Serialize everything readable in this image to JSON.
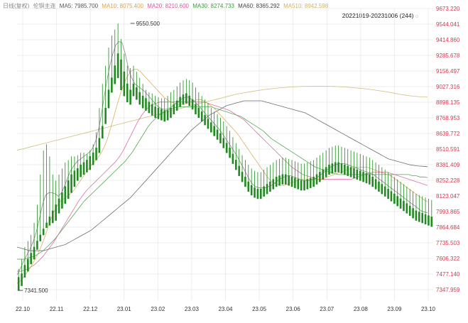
{
  "legend": {
    "name": "日线(复权)",
    "contract": "伦铜主连",
    "items": [
      {
        "label": "MA5: 7985.700",
        "color": "#555555"
      },
      {
        "label": "MA10: 8075.400",
        "color": "#d9a24a"
      },
      {
        "label": "MA20: 8210.600",
        "color": "#d9559a"
      },
      {
        "label": "MA30: 8274.733",
        "color": "#3a9a3a"
      },
      {
        "label": "MA60: 8365.292",
        "color": "#444444"
      },
      {
        "label": "MA510: 8942.598",
        "color": "#c8b46a"
      }
    ]
  },
  "range_label": "20221019-20231006 (244)",
  "colors": {
    "up": "#e0334a",
    "down": "#1f8a1f",
    "axis_text": "#e0334a",
    "grid": "#ececec"
  },
  "chart_data": {
    "type": "line",
    "y_ticks": [
      "9673.220",
      "9544.041",
      "9414.860",
      "9285.678",
      "9156.497",
      "9027.316",
      "8898.135",
      "8768.953",
      "8639.772",
      "8510.591",
      "8381.409",
      "8252.228",
      "8123.047",
      "7993.865",
      "7864.684",
      "7735.503",
      "7606.322",
      "7477.140",
      "7347.959"
    ],
    "ylim": [
      7347.959,
      9673.22
    ],
    "x_ticks": [
      "22.10",
      "22.11",
      "22.12",
      "23.01",
      "23.02",
      "23.03",
      "23.04",
      "23.05",
      "23.06",
      "23.07",
      "23.08",
      "23.09",
      "23.10"
    ],
    "annotations": [
      {
        "label": "9550.500",
        "x": 36,
        "y": 9550.5
      },
      {
        "label": "7341.500",
        "x": 0,
        "y": 7341.5
      }
    ],
    "candles": [
      [
        7450,
        7520,
        7380,
        7340
      ],
      [
        7480,
        7600,
        7420,
        7380
      ],
      [
        7550,
        7700,
        7480,
        7450
      ],
      [
        7600,
        7750,
        7560,
        7500
      ],
      [
        7650,
        7800,
        7620,
        7560
      ],
      [
        7700,
        7900,
        7680,
        7600
      ],
      [
        7750,
        8050,
        7720,
        7680
      ],
      [
        7800,
        8300,
        7790,
        7750
      ],
      [
        7850,
        8500,
        7840,
        7800
      ],
      [
        7900,
        8550,
        7880,
        7860
      ],
      [
        7950,
        8450,
        7900,
        7880
      ],
      [
        8000,
        8300,
        7940,
        7900
      ],
      [
        8050,
        8250,
        7980,
        7920
      ],
      [
        8100,
        8300,
        8000,
        7980
      ],
      [
        8150,
        8350,
        8060,
        8020
      ],
      [
        8200,
        8400,
        8100,
        8060
      ],
      [
        8250,
        8420,
        8180,
        8100
      ],
      [
        8300,
        8450,
        8240,
        8150
      ],
      [
        8330,
        8450,
        8300,
        8200
      ],
      [
        8350,
        8460,
        8330,
        8250
      ],
      [
        8380,
        8480,
        8350,
        8280
      ],
      [
        8400,
        8480,
        8370,
        8300
      ],
      [
        8420,
        8470,
        8400,
        8320
      ],
      [
        8450,
        8500,
        8420,
        8340
      ],
      [
        8480,
        8550,
        8450,
        8380
      ],
      [
        8520,
        8650,
        8500,
        8420
      ],
      [
        8600,
        8850,
        8580,
        8480
      ],
      [
        8700,
        9050,
        8680,
        8600
      ],
      [
        8850,
        9200,
        8820,
        8720
      ],
      [
        9000,
        9350,
        8950,
        8850
      ],
      [
        9100,
        9450,
        9050,
        8980
      ],
      [
        9200,
        9500,
        9150,
        9050
      ],
      [
        9300,
        9550.5,
        9250,
        9100
      ],
      [
        9250,
        9420,
        9150,
        9000
      ],
      [
        9150,
        9300,
        9050,
        8950
      ],
      [
        9050,
        9200,
        8980,
        8900
      ],
      [
        9000,
        9180,
        8950,
        8880
      ],
      [
        9050,
        9200,
        9000,
        8950
      ],
      [
        9020,
        9150,
        8980,
        8920
      ],
      [
        8980,
        9100,
        8930,
        8880
      ],
      [
        8950,
        9050,
        8900,
        8850
      ],
      [
        8930,
        9000,
        8880,
        8830
      ],
      [
        8900,
        8980,
        8860,
        8810
      ],
      [
        8880,
        8970,
        8840,
        8790
      ],
      [
        8860,
        8950,
        8820,
        8770
      ],
      [
        8850,
        8940,
        8800,
        8760
      ],
      [
        8840,
        8930,
        8790,
        8750
      ],
      [
        8830,
        8930,
        8780,
        8740
      ],
      [
        8830,
        8950,
        8790,
        8750
      ],
      [
        8850,
        8980,
        8810,
        8770
      ],
      [
        8880,
        9000,
        8840,
        8800
      ],
      [
        8910,
        9030,
        8870,
        8830
      ],
      [
        8940,
        9060,
        8900,
        8860
      ],
      [
        8960,
        9080,
        8920,
        8880
      ],
      [
        8970,
        9090,
        8930,
        8890
      ],
      [
        8950,
        9080,
        8910,
        8870
      ],
      [
        8920,
        9060,
        8880,
        8840
      ],
      [
        8880,
        9020,
        8840,
        8800
      ],
      [
        8850,
        8980,
        8810,
        8770
      ],
      [
        8820,
        8950,
        8780,
        8740
      ],
      [
        8790,
        8920,
        8750,
        8710
      ],
      [
        8760,
        8890,
        8720,
        8680
      ],
      [
        8730,
        8850,
        8690,
        8650
      ],
      [
        8700,
        8820,
        8660,
        8620
      ],
      [
        8670,
        8800,
        8630,
        8590
      ],
      [
        8640,
        8770,
        8600,
        8560
      ],
      [
        8600,
        8740,
        8560,
        8520
      ],
      [
        8560,
        8700,
        8520,
        8480
      ],
      [
        8520,
        8660,
        8480,
        8440
      ],
      [
        8470,
        8610,
        8430,
        8390
      ],
      [
        8420,
        8560,
        8380,
        8340
      ],
      [
        8370,
        8510,
        8330,
        8290
      ],
      [
        8320,
        8460,
        8280,
        8240
      ],
      [
        8280,
        8420,
        8240,
        8200
      ],
      [
        8240,
        8380,
        8200,
        8160
      ],
      [
        8210,
        8350,
        8170,
        8130
      ],
      [
        8190,
        8330,
        8150,
        8110
      ],
      [
        8180,
        8320,
        8140,
        8100
      ],
      [
        8180,
        8320,
        8140,
        8100
      ],
      [
        8200,
        8340,
        8160,
        8120
      ],
      [
        8220,
        8360,
        8180,
        8140
      ],
      [
        8240,
        8380,
        8200,
        8160
      ],
      [
        8260,
        8400,
        8220,
        8180
      ],
      [
        8280,
        8420,
        8240,
        8200
      ],
      [
        8290,
        8430,
        8250,
        8210
      ],
      [
        8300,
        8440,
        8260,
        8220
      ],
      [
        8300,
        8440,
        8260,
        8220
      ],
      [
        8290,
        8430,
        8250,
        8210
      ],
      [
        8280,
        8420,
        8240,
        8200
      ],
      [
        8270,
        8410,
        8230,
        8190
      ],
      [
        8260,
        8400,
        8220,
        8180
      ],
      [
        8250,
        8390,
        8210,
        8170
      ],
      [
        8250,
        8390,
        8210,
        8170
      ],
      [
        8260,
        8400,
        8220,
        8180
      ],
      [
        8270,
        8410,
        8230,
        8190
      ],
      [
        8280,
        8420,
        8240,
        8200
      ],
      [
        8300,
        8440,
        8260,
        8220
      ],
      [
        8320,
        8460,
        8280,
        8240
      ],
      [
        8340,
        8480,
        8300,
        8260
      ],
      [
        8360,
        8500,
        8320,
        8280
      ],
      [
        8380,
        8520,
        8340,
        8300
      ],
      [
        8390,
        8530,
        8350,
        8310
      ],
      [
        8400,
        8540,
        8360,
        8320
      ],
      [
        8400,
        8540,
        8360,
        8320
      ],
      [
        8390,
        8530,
        8350,
        8310
      ],
      [
        8380,
        8520,
        8340,
        8300
      ],
      [
        8370,
        8510,
        8330,
        8290
      ],
      [
        8360,
        8500,
        8320,
        8280
      ],
      [
        8350,
        8490,
        8310,
        8270
      ],
      [
        8340,
        8480,
        8300,
        8260
      ],
      [
        8330,
        8470,
        8290,
        8250
      ],
      [
        8320,
        8460,
        8280,
        8240
      ],
      [
        8310,
        8450,
        8270,
        8230
      ],
      [
        8300,
        8440,
        8260,
        8220
      ],
      [
        8280,
        8420,
        8240,
        8200
      ],
      [
        8260,
        8400,
        8220,
        8180
      ],
      [
        8240,
        8380,
        8200,
        8160
      ],
      [
        8220,
        8360,
        8180,
        8140
      ],
      [
        8200,
        8340,
        8160,
        8120
      ],
      [
        8180,
        8320,
        8140,
        8100
      ],
      [
        8160,
        8300,
        8120,
        8080
      ],
      [
        8140,
        8280,
        8100,
        8060
      ],
      [
        8120,
        8260,
        8080,
        8040
      ],
      [
        8100,
        8240,
        8060,
        8020
      ],
      [
        8080,
        8220,
        8040,
        8000
      ],
      [
        8060,
        8200,
        8020,
        7980
      ],
      [
        8040,
        8180,
        8000,
        7960
      ],
      [
        8020,
        8160,
        7980,
        7940
      ],
      [
        8000,
        8140,
        7960,
        7920
      ],
      [
        7990,
        8130,
        7950,
        7910
      ],
      [
        7980,
        8120,
        7940,
        7900
      ],
      [
        7970,
        8110,
        7930,
        7890
      ],
      [
        7960,
        8100,
        7920,
        7880
      ],
      [
        7950,
        8090,
        7910,
        7870
      ]
    ],
    "ma5": [
      7470,
      7520,
      7580,
      7630,
      7680,
      7740,
      7820,
      7930,
      8050,
      8130,
      8150,
      8150,
      8140,
      8120,
      8150,
      8210,
      8280,
      8340,
      8380,
      8410,
      8430,
      8450,
      8470,
      8490,
      8530,
      8600,
      8720,
      8880,
      9040,
      9180,
      9290,
      9370,
      9400,
      9390,
      9300,
      9180,
      9100,
      9050,
      9030,
      9010,
      8990,
      8960,
      8930,
      8900,
      8870,
      8850,
      8840,
      8840,
      8850,
      8870,
      8890,
      8910,
      8930,
      8940,
      8940,
      8920,
      8900,
      8870,
      8840,
      8810,
      8780,
      8750,
      8720,
      8690,
      8660,
      8620,
      8580,
      8540,
      8500,
      8460,
      8410,
      8360,
      8310,
      8260,
      8220,
      8200,
      8190,
      8190,
      8190,
      8200,
      8210,
      8230,
      8250,
      8270,
      8280,
      8290,
      8290,
      8280,
      8270,
      8260,
      8250,
      8250,
      8250,
      8260,
      8270,
      8290,
      8310,
      8330,
      8350,
      8370,
      8380,
      8390,
      8390,
      8390,
      8380,
      8370,
      8360,
      8350,
      8340,
      8330,
      8320,
      8310,
      8300,
      8280,
      8260,
      8240,
      8220,
      8200,
      8180,
      8160,
      8140,
      8120,
      8100,
      8080,
      8060,
      8040,
      8020,
      8000,
      7990,
      7985
    ],
    "ma10": [
      7400,
      7420,
      7450,
      7490,
      7530,
      7580,
      7630,
      7690,
      7760,
      7840,
      7920,
      7990,
      8040,
      8080,
      8100,
      8120,
      8140,
      8170,
      8210,
      8250,
      8290,
      8330,
      8370,
      8400,
      8430,
      8470,
      8520,
      8590,
      8680,
      8780,
      8880,
      8970,
      9050,
      9110,
      9150,
      9170,
      9170,
      9150,
      9120,
      9090,
      9060,
      9030,
      9000,
      8970,
      8940,
      8920,
      8900,
      8890,
      8880,
      8880,
      8880,
      8890,
      8900,
      8910,
      8920,
      8920,
      8910,
      8890,
      8870,
      8850,
      8820,
      8790,
      8760,
      8730,
      8700,
      8670,
      8640,
      8600,
      8560,
      8520,
      8480,
      8440,
      8400,
      8360,
      8320,
      8280,
      8250,
      8230,
      8220,
      8210,
      8210,
      8220,
      8230,
      8240,
      8250,
      8260,
      8260,
      8260,
      8260,
      8260,
      8260,
      8260,
      8270,
      8280,
      8290,
      8300,
      8310,
      8320,
      8330,
      8340,
      8350,
      8360,
      8360,
      8360,
      8360,
      8360,
      8350,
      8340,
      8330,
      8320,
      8310,
      8300,
      8290,
      8270,
      8250,
      8230,
      8210,
      8190,
      8170,
      8150,
      8130,
      8110,
      8090,
      8075
    ],
    "ma20": [
      7500,
      7500,
      7510,
      7520,
      7540,
      7560,
      7590,
      7620,
      7660,
      7700,
      7740,
      7790,
      7840,
      7890,
      7940,
      7990,
      8040,
      8090,
      8130,
      8170,
      8200,
      8230,
      8260,
      8290,
      8320,
      8350,
      8380,
      8410,
      8450,
      8500,
      8560,
      8620,
      8680,
      8740,
      8790,
      8830,
      8860,
      8880,
      8890,
      8900,
      8900,
      8900,
      8900,
      8900,
      8900,
      8900,
      8900,
      8900,
      8900,
      8900,
      8900,
      8900,
      8890,
      8880,
      8870,
      8860,
      8850,
      8840,
      8830,
      8810,
      8790,
      8770,
      8750,
      8720,
      8690,
      8660,
      8630,
      8600,
      8570,
      8540,
      8510,
      8480,
      8450,
      8420,
      8390,
      8360,
      8340,
      8320,
      8300,
      8290,
      8280,
      8270,
      8260,
      8260,
      8260,
      8260,
      8260,
      8260,
      8260,
      8260,
      8260,
      8260,
      8270,
      8280,
      8290,
      8300,
      8310,
      8320,
      8320,
      8320,
      8320,
      8320,
      8310,
      8300,
      8290,
      8280,
      8270,
      8260,
      8250,
      8240,
      8230,
      8220,
      8210
    ],
    "ma30": [
      7600,
      7600,
      7600,
      7610,
      7620,
      7630,
      7650,
      7670,
      7700,
      7730,
      7760,
      7800,
      7840,
      7880,
      7920,
      7960,
      8000,
      8040,
      8080,
      8110,
      8140,
      8170,
      8200,
      8230,
      8260,
      8290,
      8320,
      8350,
      8380,
      8410,
      8450,
      8490,
      8540,
      8590,
      8640,
      8690,
      8730,
      8760,
      8790,
      8810,
      8830,
      8840,
      8850,
      8860,
      8860,
      8860,
      8860,
      8860,
      8860,
      8860,
      8860,
      8860,
      8860,
      8850,
      8840,
      8830,
      8820,
      8810,
      8800,
      8790,
      8780,
      8760,
      8740,
      8720,
      8700,
      8680,
      8660,
      8630,
      8600,
      8580,
      8560,
      8540,
      8520,
      8500,
      8480,
      8460,
      8440,
      8420,
      8400,
      8380,
      8360,
      8350,
      8340,
      8330,
      8320,
      8310,
      8300,
      8300,
      8300,
      8300,
      8300,
      8300,
      8300,
      8300,
      8300,
      8300,
      8300,
      8300,
      8300,
      8300,
      8300,
      8300,
      8300,
      8300,
      8300,
      8300,
      8290,
      8290,
      8280,
      8280,
      8275
    ],
    "ma60": [
      7700,
      7690,
      7680,
      7670,
      7670,
      7670,
      7670,
      7680,
      7690,
      7700,
      7710,
      7720,
      7740,
      7760,
      7780,
      7800,
      7820,
      7840,
      7870,
      7900,
      7930,
      7960,
      7990,
      8020,
      8050,
      8080,
      8110,
      8150,
      8190,
      8230,
      8270,
      8310,
      8350,
      8390,
      8430,
      8470,
      8510,
      8550,
      8590,
      8630,
      8670,
      8700,
      8730,
      8760,
      8790,
      8810,
      8830,
      8850,
      8870,
      8880,
      8890,
      8900,
      8910,
      8910,
      8910,
      8910,
      8910,
      8900,
      8890,
      8880,
      8870,
      8860,
      8850,
      8840,
      8830,
      8820,
      8810,
      8790,
      8770,
      8750,
      8730,
      8710,
      8690,
      8670,
      8650,
      8630,
      8610,
      8590,
      8570,
      8550,
      8530,
      8510,
      8490,
      8470,
      8450,
      8430,
      8420,
      8410,
      8400,
      8390,
      8380,
      8375,
      8370,
      8368,
      8365
    ],
    "ma510": [
      8500,
      8515,
      8530,
      8545,
      8560,
      8575,
      8590,
      8605,
      8620,
      8635,
      8650,
      8665,
      8680,
      8695,
      8710,
      8725,
      8740,
      8755,
      8770,
      8785,
      8800,
      8815,
      8830,
      8845,
      8860,
      8875,
      8890,
      8905,
      8920,
      8935,
      8950,
      8965,
      8975,
      8985,
      8995,
      9003,
      9010,
      9016,
      9021,
      9025,
      9028,
      9030,
      9031,
      9031,
      9030,
      9028,
      9025,
      9021,
      9016,
      9010,
      9003,
      8995,
      8986,
      8976,
      8965,
      8955,
      8948,
      8943,
      8942.598
    ]
  }
}
